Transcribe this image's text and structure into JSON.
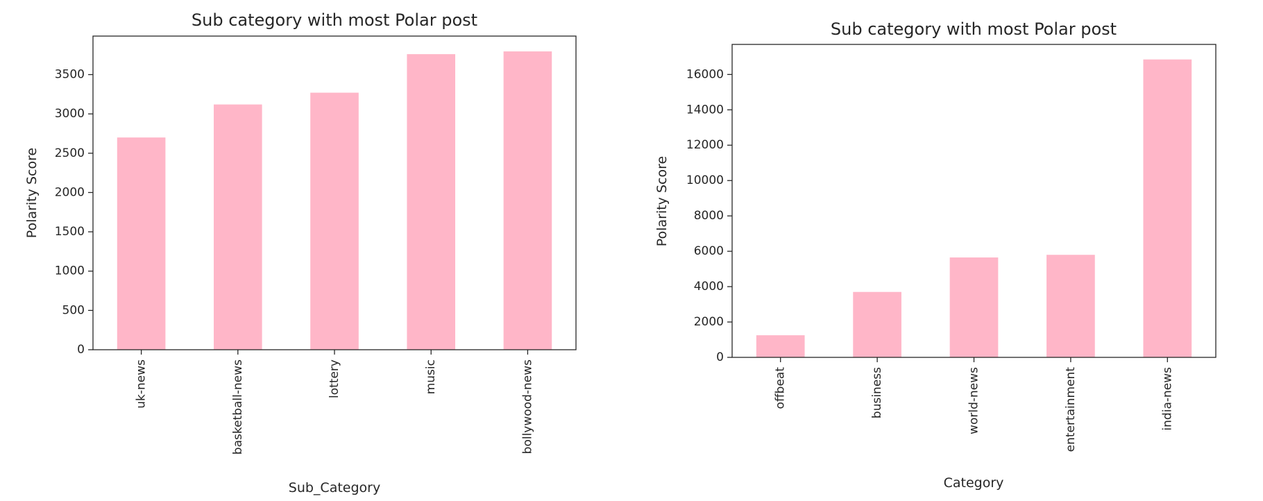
{
  "chart_data": [
    {
      "type": "bar",
      "title": "Sub category with most Polar post",
      "xlabel": "Sub_Category",
      "ylabel": "Polarity Score",
      "categories": [
        "uk-news",
        "basketball-news",
        "lottery",
        "music",
        "bollywood-news"
      ],
      "values": [
        2700,
        3120,
        3270,
        3760,
        3795
      ],
      "yticks": [
        0,
        500,
        1000,
        1500,
        2000,
        2500,
        3000,
        3500
      ],
      "ylim": [
        0,
        3990
      ],
      "color": "#ffb6c8",
      "grid": false,
      "legend": "none"
    },
    {
      "type": "bar",
      "title": "Sub category with most Polar post",
      "xlabel": "Category",
      "ylabel": "Polarity Score",
      "categories": [
        "offbeat",
        "business",
        "world-news",
        "entertainment",
        "india-news"
      ],
      "values": [
        1250,
        3700,
        5650,
        5800,
        16850
      ],
      "yticks": [
        0,
        2000,
        4000,
        6000,
        8000,
        10000,
        12000,
        14000,
        16000
      ],
      "ylim": [
        0,
        17700
      ],
      "color": "#ffb6c8",
      "grid": false,
      "legend": "none"
    }
  ]
}
